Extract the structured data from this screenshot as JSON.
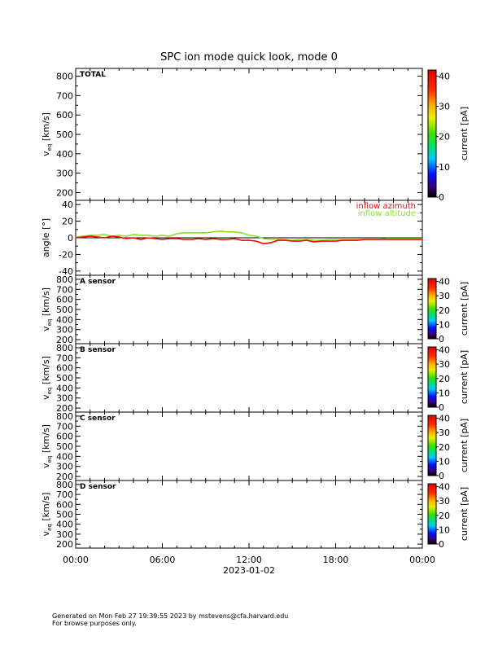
{
  "header": {
    "title": "SPC ion mode quick look, mode 0"
  },
  "footer": {
    "line1": "Generated on Mon Feb 27 19:39:55 2023 by mstevens@cfa.harvard.edu",
    "line2": "For browse purposes only."
  },
  "chart_data": [
    {
      "type": "heatmap",
      "panel_label": "TOTAL",
      "ylabel": "v_eq [km/s]",
      "ylabel_main": "v",
      "ylabel_sub": "eq",
      "ylabel_unit": "[km/s]",
      "yticks": [
        "200",
        "300",
        "400",
        "500",
        "600",
        "700",
        "800"
      ],
      "ylim": [
        160,
        840
      ],
      "colorbar": {
        "label": "current [pA]",
        "ticks": [
          "0",
          "10",
          "20",
          "30",
          "40"
        ],
        "range": [
          0,
          42
        ]
      }
    },
    {
      "type": "line",
      "ylabel": "angle [°]",
      "yticks": [
        "-40",
        "-20",
        "0",
        "20",
        "40"
      ],
      "ylim": [
        -45,
        45
      ],
      "xlim_hours": [
        0,
        24
      ],
      "legend": {
        "placement": "top-right"
      },
      "series": [
        {
          "name": "inflow azimuth",
          "color": "#ff0000",
          "x": [
            0,
            0.5,
            1,
            1.5,
            2,
            2.5,
            3,
            3.5,
            4,
            4.5,
            5,
            5.5,
            6,
            6.5,
            7,
            7.5,
            8,
            8.5,
            9,
            9.5,
            10,
            10.5,
            11,
            11.5,
            12,
            12.5,
            13,
            13.5,
            14,
            14.5,
            15,
            15.5,
            16,
            16.5,
            17,
            17.5,
            18,
            18.5,
            19,
            19.5,
            20,
            20.5,
            21,
            21.5,
            22,
            22.5,
            23,
            23.5,
            24
          ],
          "y": [
            0,
            1,
            2,
            1,
            0,
            2,
            1,
            -1,
            0,
            -2,
            0,
            -1,
            -2,
            -1,
            -1,
            -2,
            -2,
            -1,
            -2,
            -1,
            -2,
            -2,
            -1,
            -3,
            -3,
            -4,
            -7,
            -6,
            -3,
            -3,
            -4,
            -4,
            -3,
            -5,
            -4,
            -4,
            -4,
            -3,
            -3,
            -3,
            -2,
            -2,
            -2,
            -2,
            -2,
            -2,
            -2,
            -2,
            -2
          ]
        },
        {
          "name": "inflow altitude",
          "color": "#88e02a",
          "x": [
            0,
            0.5,
            1,
            1.5,
            2,
            2.5,
            3,
            3.5,
            4,
            4.5,
            5,
            5.5,
            6,
            6.5,
            7,
            7.5,
            8,
            8.5,
            9,
            9.5,
            10,
            10.5,
            11,
            11.5,
            12,
            12.5,
            13,
            13.5,
            14,
            14.5,
            15,
            15.5,
            16,
            16.5,
            17,
            17.5,
            18,
            18.5,
            19,
            19.5,
            20,
            20.5,
            21,
            21.5,
            22,
            22.5,
            23,
            23.5,
            24
          ],
          "y": [
            1,
            2,
            3,
            3,
            4,
            2,
            3,
            2,
            4,
            3,
            3,
            2,
            3,
            2,
            5,
            6,
            6,
            6,
            6,
            7,
            8,
            7,
            7,
            6,
            3,
            2,
            -1,
            -2,
            -2,
            -2,
            -3,
            -2,
            -2,
            -3,
            -3,
            -2,
            -2,
            -2,
            -2,
            -2,
            -2,
            -2,
            -2,
            -1,
            -1,
            -1,
            -1,
            -1,
            -1
          ]
        }
      ]
    },
    {
      "type": "heatmap",
      "panel_label": "A sensor",
      "ylabel": "v_eq [km/s]",
      "ylabel_main": "v",
      "ylabel_sub": "eq",
      "ylabel_unit": "[km/s]",
      "yticks": [
        "200",
        "300",
        "400",
        "500",
        "600",
        "700",
        "800"
      ],
      "ylim": [
        160,
        840
      ],
      "colorbar": {
        "label": "current [pA]",
        "ticks": [
          "0",
          "10",
          "20",
          "30",
          "40"
        ],
        "range": [
          0,
          42
        ]
      }
    },
    {
      "type": "heatmap",
      "panel_label": "B sensor",
      "ylabel": "v_eq [km/s]",
      "ylabel_main": "v",
      "ylabel_sub": "eq",
      "ylabel_unit": "[km/s]",
      "yticks": [
        "200",
        "300",
        "400",
        "500",
        "600",
        "700",
        "800"
      ],
      "ylim": [
        160,
        840
      ],
      "colorbar": {
        "label": "current [pA]",
        "ticks": [
          "0",
          "10",
          "20",
          "30",
          "40"
        ],
        "range": [
          0,
          42
        ]
      }
    },
    {
      "type": "heatmap",
      "panel_label": "C sensor",
      "ylabel": "v_eq [km/s]",
      "ylabel_main": "v",
      "ylabel_sub": "eq",
      "ylabel_unit": "[km/s]",
      "yticks": [
        "200",
        "300",
        "400",
        "500",
        "600",
        "700",
        "800"
      ],
      "ylim": [
        160,
        840
      ],
      "colorbar": {
        "label": "current [pA]",
        "ticks": [
          "0",
          "10",
          "20",
          "30",
          "40"
        ],
        "range": [
          0,
          42
        ]
      }
    },
    {
      "type": "heatmap",
      "panel_label": "D sensor",
      "ylabel": "v_eq [km/s]",
      "ylabel_main": "v",
      "ylabel_sub": "eq",
      "ylabel_unit": "[km/s]",
      "yticks": [
        "200",
        "300",
        "400",
        "500",
        "600",
        "700",
        "800"
      ],
      "ylim": [
        160,
        840
      ],
      "colorbar": {
        "label": "current [pA]",
        "ticks": [
          "0",
          "10",
          "20",
          "30",
          "40"
        ],
        "range": [
          0,
          42
        ]
      }
    }
  ],
  "xaxis": {
    "ticks": [
      "00:00",
      "06:00",
      "12:00",
      "18:00",
      "00:00"
    ],
    "tick_hours": [
      0,
      6,
      12,
      18,
      24
    ],
    "date_label": "2023-01-02"
  },
  "colors": {
    "axis": "#000000",
    "azimuth": "#ff0000",
    "altitude": "#88e02a"
  }
}
